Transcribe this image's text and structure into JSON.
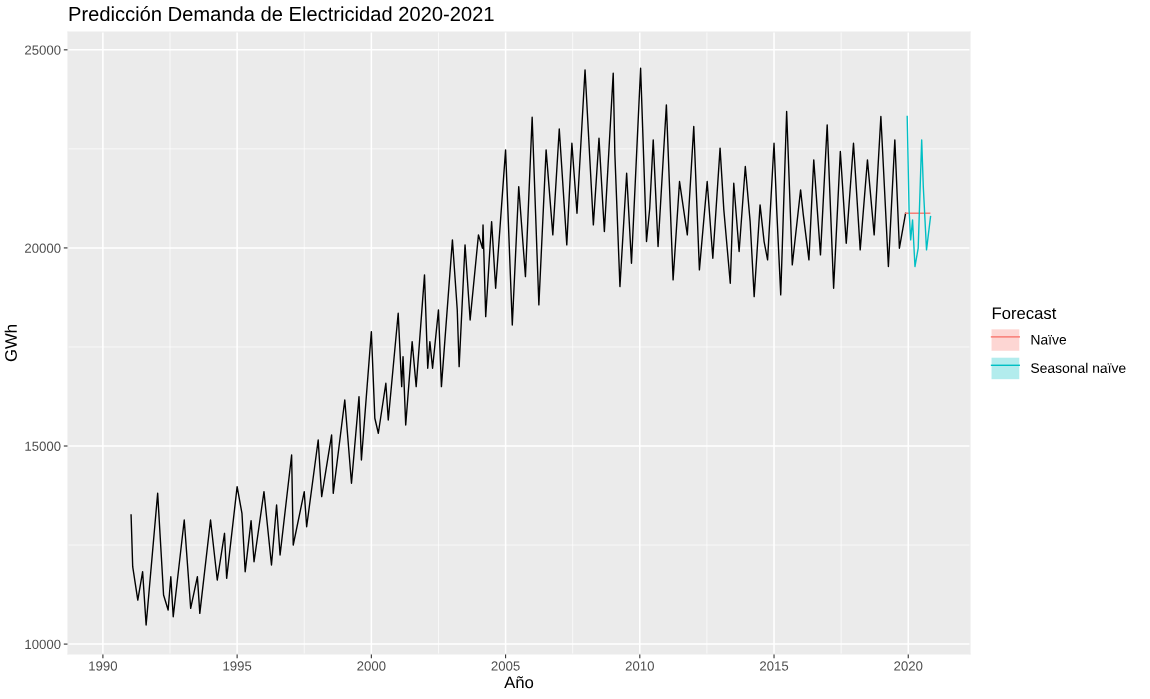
{
  "chart_data": {
    "type": "line",
    "title": "Predicción Demanda de Electricidad 2020-2021",
    "xlabel": "Año",
    "ylabel": "GWh",
    "legend_title": "Forecast",
    "legend": "right",
    "grid": true,
    "xlim": [
      1988.7,
      2022.3
    ],
    "xticks": [
      1990,
      1995,
      2000,
      2005,
      2010,
      2015,
      2020
    ],
    "ylim": [
      9750,
      25450
    ],
    "yticks": [
      10000,
      15000,
      20000,
      25000
    ],
    "series": [
      {
        "color": "#000000",
        "x": [
          1991.05,
          1991.11,
          1991.3,
          1991.48,
          1991.61,
          1992.04,
          1992.26,
          1992.43,
          1992.53,
          1992.62,
          1993.03,
          1993.27,
          1993.52,
          1993.61,
          1994.01,
          1994.26,
          1994.53,
          1994.61,
          1995.0,
          1995.18,
          1995.3,
          1995.52,
          1995.63,
          1996.0,
          1996.28,
          1996.47,
          1996.6,
          1997.03,
          1997.09,
          1997.5,
          1997.59,
          1998.02,
          1998.15,
          1998.52,
          1998.58,
          1999.01,
          1999.26,
          1999.54,
          1999.63,
          2000.0,
          2000.13,
          2000.26,
          2000.54,
          2000.63,
          2001.0,
          2001.13,
          2001.18,
          2001.28,
          2001.52,
          2001.67,
          2001.98,
          2002.1,
          2002.18,
          2002.28,
          2002.5,
          2002.61,
          2003.02,
          2003.2,
          2003.27,
          2003.49,
          2003.68,
          2003.99,
          2004.14,
          2004.16,
          2004.26,
          2004.48,
          2004.63,
          2005.0,
          2005.25,
          2005.49,
          2005.74,
          2005.99,
          2006.24,
          2006.51,
          2006.76,
          2007.0,
          2007.28,
          2007.47,
          2007.66,
          2007.96,
          2008.27,
          2008.48,
          2008.68,
          2009.01,
          2009.07,
          2009.26,
          2009.51,
          2009.69,
          2010.03,
          2010.25,
          2010.37,
          2010.5,
          2010.68,
          2010.99,
          2011.24,
          2011.48,
          2011.77,
          2012.01,
          2012.22,
          2012.51,
          2012.72,
          2012.99,
          2013.13,
          2013.37,
          2013.5,
          2013.7,
          2013.93,
          2014.11,
          2014.26,
          2014.48,
          2014.63,
          2014.76,
          2015.0,
          2015.1,
          2015.25,
          2015.47,
          2015.68,
          2015.99,
          2016.09,
          2016.3,
          2016.48,
          2016.73,
          2016.98,
          2017.22,
          2017.47,
          2017.69,
          2017.96,
          2018.21,
          2018.48,
          2018.73,
          2018.98,
          2019.26,
          2019.5,
          2019.67,
          2019.9
        ],
        "values": [
          13259,
          11953,
          11112,
          11827,
          10481,
          13806,
          11239,
          10860,
          11701,
          10691,
          13132,
          10902,
          11701,
          10776,
          13132,
          11617,
          12796,
          11660,
          13974,
          13301,
          11827,
          13115,
          12080,
          13847,
          11996,
          13511,
          12249,
          14774,
          12501,
          13847,
          12963,
          15152,
          13721,
          15279,
          13806,
          16162,
          14059,
          16246,
          14647,
          17887,
          15700,
          15322,
          16584,
          15657,
          18352,
          16498,
          17256,
          15531,
          17635,
          16498,
          19319,
          16963,
          17635,
          16963,
          18435,
          16498,
          20202,
          18435,
          17003,
          20076,
          18182,
          20329,
          19993,
          20581,
          18266,
          20665,
          18983,
          22475,
          18056,
          21548,
          19276,
          23300,
          18561,
          22475,
          20329,
          23000,
          20076,
          22643,
          20876,
          24495,
          20581,
          22770,
          20413,
          24411,
          22391,
          19024,
          21886,
          19613,
          24537,
          20161,
          21002,
          22727,
          20034,
          23611,
          19192,
          21675,
          20329,
          23064,
          19445,
          21675,
          19740,
          22518,
          20960,
          19109,
          21634,
          19908,
          22054,
          20665,
          18771,
          21086,
          20160,
          19697,
          22643,
          20960,
          18814,
          23443,
          19571,
          21465,
          20834,
          19697,
          22222,
          19824,
          23106,
          18982,
          22433,
          20118,
          22643,
          19950,
          22222,
          20329,
          23317,
          19529,
          22727,
          19993,
          20876
        ]
      },
      {
        "name": "Naïve",
        "color": "#f8766d",
        "x": [
          2019.9,
          2020.8
        ],
        "values": [
          20876,
          20876
        ]
      },
      {
        "name": "Seasonal naïve",
        "color": "#00bfc4",
        "x": [
          2019.96,
          2020.03,
          2020.09,
          2020.16,
          2020.25,
          2020.37,
          2020.5,
          2020.56,
          2020.68,
          2020.83
        ],
        "values": [
          23317,
          20960,
          20202,
          20707,
          19529,
          19993,
          22727,
          21548,
          19950,
          20791
        ]
      }
    ]
  }
}
